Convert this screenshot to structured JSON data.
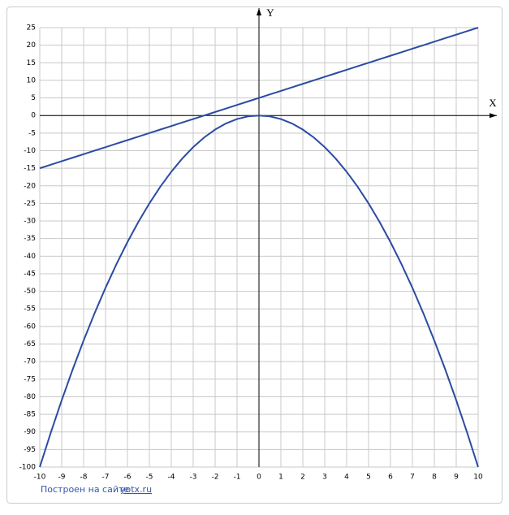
{
  "chart_data": {
    "type": "line",
    "x_label": "X",
    "y_label": "Y",
    "x": [
      -10,
      -9.5,
      -9,
      -8.5,
      -8,
      -7.5,
      -7,
      -6.5,
      -6,
      -5.5,
      -5,
      -4.5,
      -4,
      -3.5,
      -3,
      -2.5,
      -2,
      -1.5,
      -1,
      -0.5,
      0,
      0.5,
      1,
      1.5,
      2,
      2.5,
      3,
      3.5,
      4,
      4.5,
      5,
      5.5,
      6,
      6.5,
      7,
      7.5,
      8,
      8.5,
      9,
      9.5,
      10
    ],
    "series": [
      {
        "color": "#2b4ba3",
        "values": [
          -15,
          -14,
          -13,
          -12,
          -11,
          -10,
          -9,
          -8,
          -7,
          -6,
          -5,
          -4,
          -3,
          -2,
          -1,
          0,
          1,
          2,
          3,
          4,
          5,
          6,
          7,
          8,
          9,
          10,
          11,
          12,
          13,
          14,
          15,
          16,
          17,
          18,
          19,
          20,
          21,
          22,
          23,
          24,
          25
        ]
      },
      {
        "color": "#2b4ba3",
        "values": [
          -100,
          -90.25,
          -81,
          -72.25,
          -64,
          -56.25,
          -49,
          -42.25,
          -36,
          -30.25,
          -25,
          -20.25,
          -16,
          -12.25,
          -9,
          -6.25,
          -4,
          -2.25,
          -1,
          -0.25,
          0,
          -0.25,
          -1,
          -2.25,
          -4,
          -6.25,
          -9,
          -12.25,
          -16,
          -20.25,
          -25,
          -30.25,
          -36,
          -42.25,
          -49,
          -56.25,
          -64,
          -72.25,
          -81,
          -90.25,
          -100
        ]
      }
    ],
    "xlim": [
      -10,
      10
    ],
    "ylim": [
      -100,
      25
    ],
    "xticks": [
      -10,
      -9,
      -8,
      -7,
      -6,
      -5,
      -4,
      -3,
      -2,
      -1,
      0,
      1,
      2,
      3,
      4,
      5,
      6,
      7,
      8,
      9,
      10
    ],
    "yticks": [
      25,
      20,
      15,
      10,
      5,
      0,
      -5,
      -10,
      -15,
      -20,
      -25,
      -30,
      -35,
      -40,
      -45,
      -50,
      -55,
      -60,
      -65,
      -70,
      -75,
      -80,
      -85,
      -90,
      -95,
      -100
    ],
    "grid": true,
    "footer_text": "Построен на сайте",
    "footer_link": "yotx.ru"
  }
}
